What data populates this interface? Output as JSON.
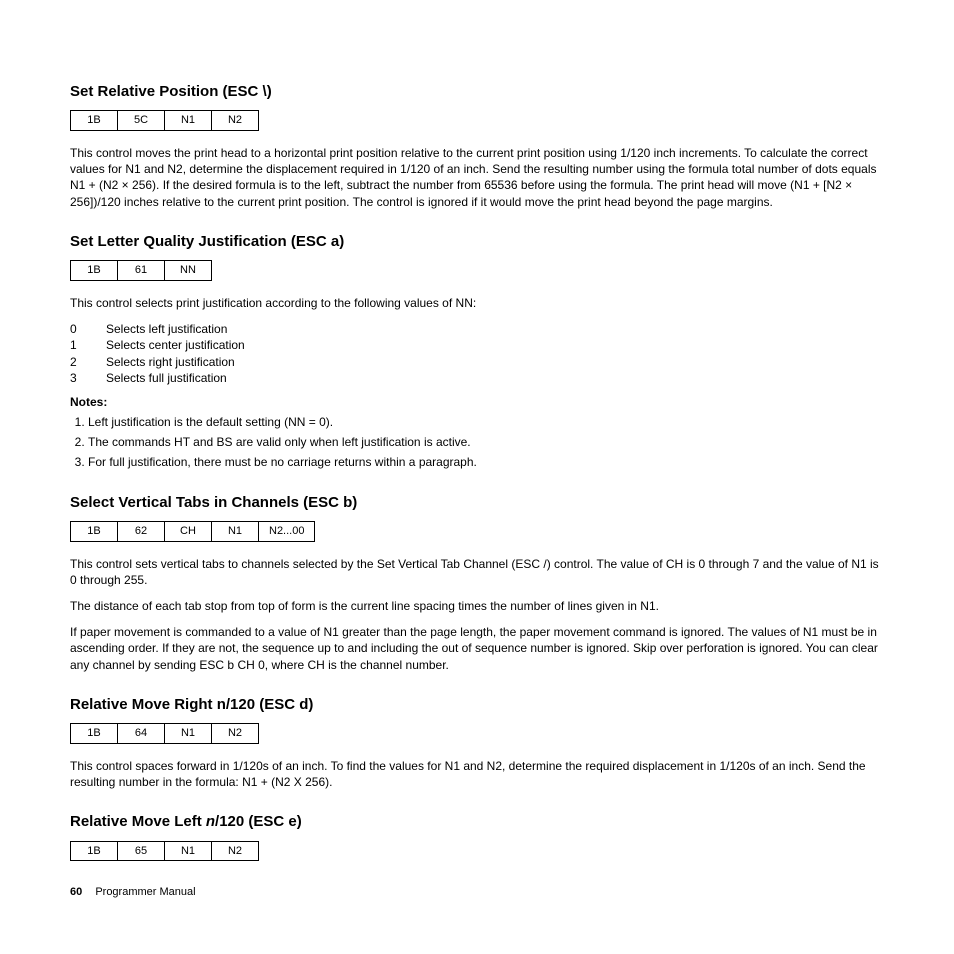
{
  "sections": {
    "s1": {
      "title": "Set Relative Position (ESC \\)",
      "codes": [
        "1B",
        "5C",
        "N1",
        "N2"
      ],
      "p1": "This control moves the print head to a horizontal print position relative to the current print position using 1/120 inch increments. To calculate the correct values for N1 and N2, determine the displacement required in 1/120 of an inch. Send the resulting number using the formula total number of dots equals N1 + (N2 × 256). If the desired formula is to the left, subtract the number from 65536 before using the formula. The print head will move (N1 + [N2 × 256])/120 inches relative to the current print position. The control is ignored if it would move the print head beyond the page margins."
    },
    "s2": {
      "title": "Set Letter Quality Justification (ESC a)",
      "codes": [
        "1B",
        "61",
        "NN"
      ],
      "p1": "This control selects print justification according to the following values of NN:",
      "vals": [
        {
          "k": "0",
          "v": "Selects left justification"
        },
        {
          "k": "1",
          "v": "Selects center justification"
        },
        {
          "k": "2",
          "v": "Selects right justification"
        },
        {
          "k": "3",
          "v": "Selects full justification"
        }
      ],
      "notes_title": "Notes:",
      "notes": [
        "Left justification is the default setting (NN = 0).",
        "The commands HT and BS are valid only when left justification is active.",
        "For full justification, there must be no carriage returns within a paragraph."
      ]
    },
    "s3": {
      "title": "Select Vertical Tabs in Channels (ESC b)",
      "codes": [
        "1B",
        "62",
        "CH",
        "N1",
        "N2...00"
      ],
      "p1": "This control sets vertical tabs to channels selected by the Set Vertical Tab Channel (ESC /) control. The value of CH is 0 through 7 and the value of N1 is 0 through 255.",
      "p2": "The distance of each tab stop from top of form is the current line spacing times the number of lines given in N1.",
      "p3": "If paper movement is commanded to a value of N1 greater than the page length, the paper movement command is ignored. The values of N1 must be in ascending order. If they are not, the sequence up to and including the out of sequence number is ignored. Skip over perforation is ignored. You can clear any channel by sending ESC b CH 0, where CH is the channel number."
    },
    "s4": {
      "title": "Relative Move Right n/120 (ESC d)",
      "codes": [
        "1B",
        "64",
        "N1",
        "N2"
      ],
      "p1": "This control spaces forward in 1/120s of an inch. To find the values for N1 and N2, determine the required displacement in 1/120s of an inch. Send the resulting number in the formula: N1 + (N2 X 256)."
    },
    "s5": {
      "title_pre": "Relative Move Left ",
      "title_it": "n",
      "title_post": "/120 (ESC e)",
      "codes": [
        "1B",
        "65",
        "N1",
        "N2"
      ]
    }
  },
  "footer": {
    "page": "60",
    "label": "Programmer Manual"
  }
}
